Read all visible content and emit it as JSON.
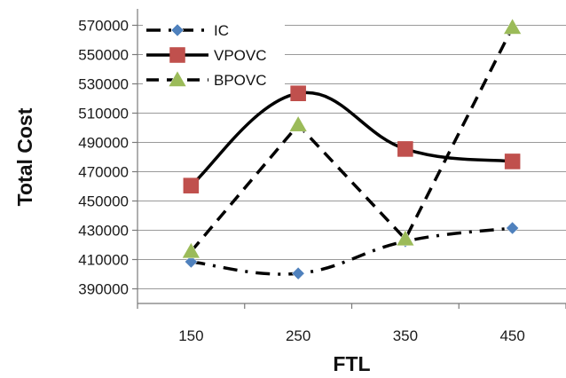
{
  "chart_data": {
    "type": "line",
    "title": "",
    "xlabel": "FTL",
    "ylabel": "Total Cost",
    "categories": [
      "150",
      "250",
      "350",
      "450"
    ],
    "yticks": [
      "570000",
      "550000",
      "530000",
      "510000",
      "490000",
      "470000",
      "450000",
      "430000",
      "410000",
      "390000"
    ],
    "ylim": [
      380000,
      580000
    ],
    "grid": true,
    "legend_position": "top-left",
    "series": [
      {
        "name": "IC",
        "values": [
          408500,
          400500,
          422500,
          431500
        ],
        "color": "#4f81bd",
        "marker": "diamond",
        "line_style": "dash-dot",
        "smooth": true
      },
      {
        "name": "VPOVC",
        "values": [
          460500,
          523500,
          485500,
          477000
        ],
        "color": "#c0504d",
        "marker": "square",
        "line_style": "solid",
        "smooth": true
      },
      {
        "name": "BPOVC",
        "values": [
          415500,
          502000,
          424000,
          568500
        ],
        "color": "#9bbb59",
        "marker": "triangle",
        "line_style": "dashed",
        "smooth": false
      }
    ]
  }
}
